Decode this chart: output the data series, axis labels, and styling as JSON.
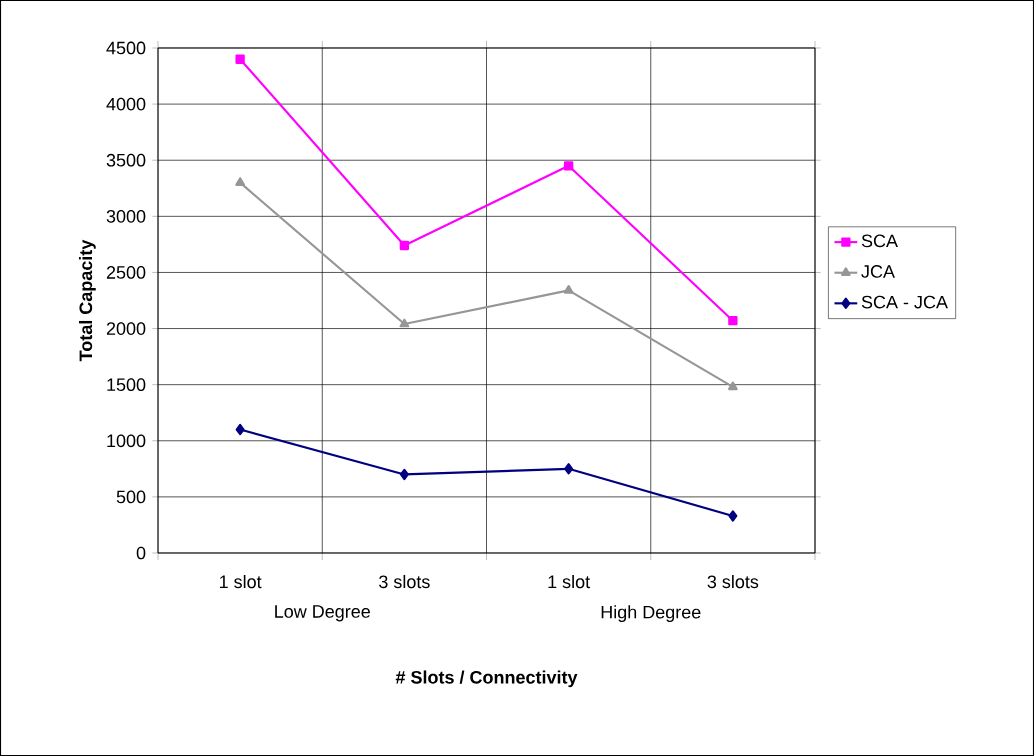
{
  "chart_data": {
    "type": "line",
    "xlabel": "# Slots / Connectivity",
    "ylabel": "Total Capacity",
    "categories": [
      "1 slot",
      "3 slots",
      "1 slot",
      "3 slots"
    ],
    "annotations": [
      "Low Degree",
      "High Degree"
    ],
    "series": [
      {
        "name": "SCA",
        "color": "#ff00ff",
        "marker": "square",
        "values": [
          4400,
          2740,
          3450,
          2070
        ]
      },
      {
        "name": "JCA",
        "color": "#969696",
        "marker": "triangle",
        "values": [
          3300,
          2040,
          2340,
          1480
        ]
      },
      {
        "name": "SCA - JCA",
        "color": "#000080",
        "marker": "diamond",
        "values": [
          1100,
          700,
          750,
          330
        ]
      }
    ],
    "ylim": [
      0,
      4500
    ],
    "yticks": [
      0,
      500,
      1000,
      1500,
      2000,
      2500,
      3000,
      3500,
      4000,
      4500
    ],
    "grid": true,
    "legend": "right",
    "line_style": "solid"
  }
}
